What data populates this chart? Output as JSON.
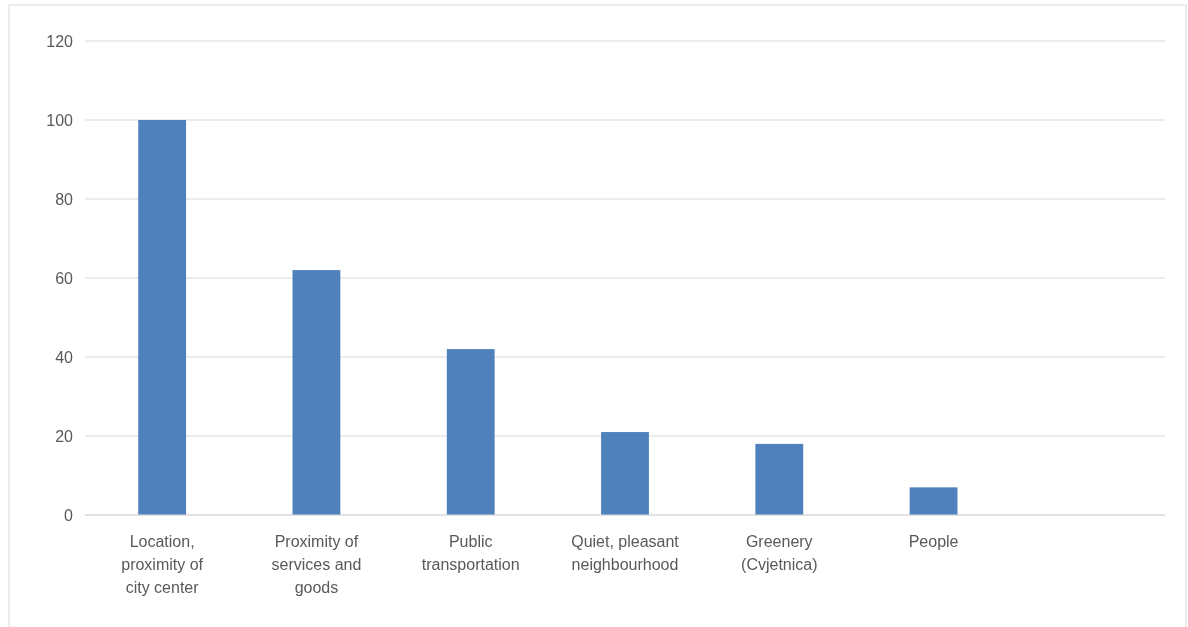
{
  "chart_data": {
    "type": "bar",
    "categories": [
      "Location, proximity of city center",
      "Proximity of services and goods",
      "Public transportation",
      "Quiet, pleasant neighbourhood",
      "Greenery (Cvjetnica)",
      "People",
      null
    ],
    "values": [
      100,
      62,
      42,
      21,
      18,
      7,
      null
    ],
    "color": "#4f81bd",
    "ylim": [
      0,
      120
    ],
    "yticks": [
      0,
      20,
      40,
      60,
      80,
      100,
      120
    ],
    "grid": "y"
  }
}
